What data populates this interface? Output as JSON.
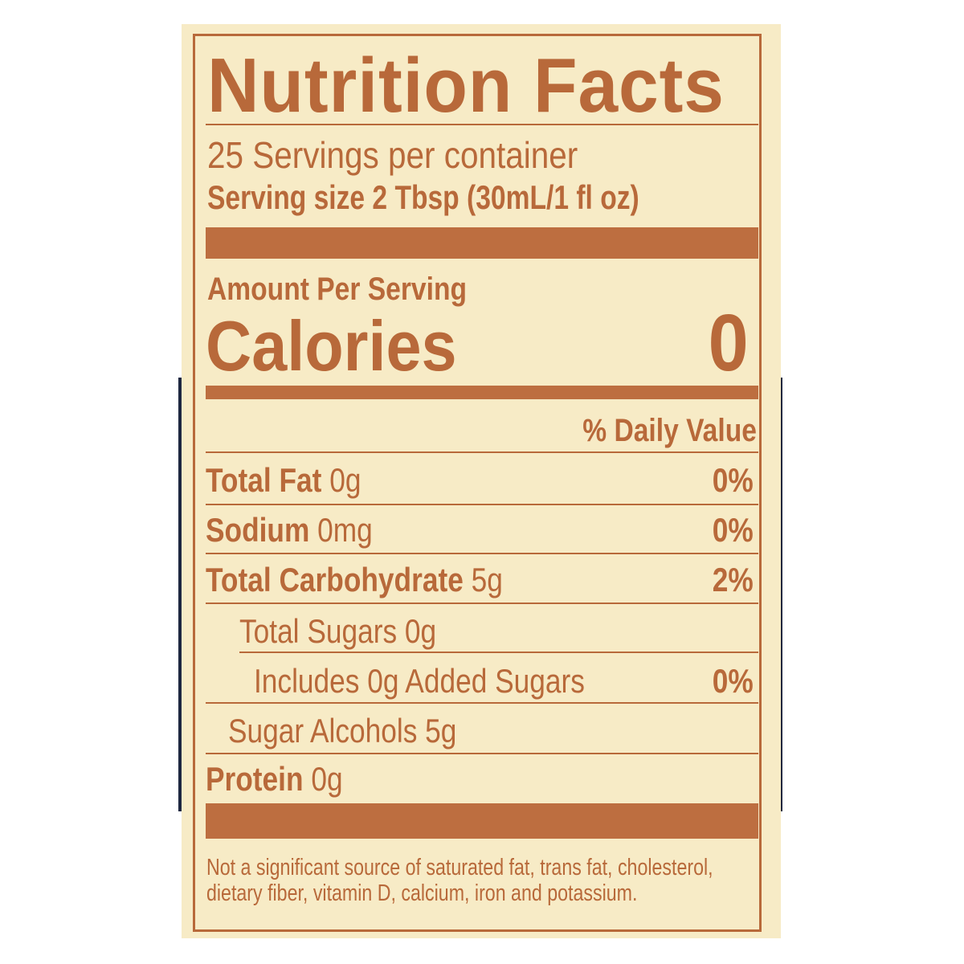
{
  "label": {
    "title": "Nutrition Facts",
    "servings_per_container": "25 Servings per container",
    "serving_size": "Serving size 2 Tbsp (30mL/1 fl oz)",
    "amount_per_serving": "Amount Per Serving",
    "calories_label": "Calories",
    "calories_value": "0",
    "daily_value_header": "% Daily Value",
    "nutrients": [
      {
        "name": "Total Fat",
        "amount": "0g",
        "dv": "0%"
      },
      {
        "name": "Sodium",
        "amount": "0mg",
        "dv": "0%"
      },
      {
        "name": "Total Carbohydrate",
        "amount": "5g",
        "dv": "2%"
      },
      {
        "name": "Total Sugars 0g",
        "amount": "",
        "dv": ""
      },
      {
        "name": "Includes 0g Added Sugars",
        "amount": "",
        "dv": "0%"
      },
      {
        "name": "Sugar Alcohols 5g",
        "amount": "",
        "dv": ""
      },
      {
        "name": "Protein",
        "amount": "0g",
        "dv": ""
      }
    ],
    "footnote_line1": "Not a significant source of saturated fat, trans fat, cholesterol,",
    "footnote_line2": "dietary fiber, vitamin D, calcium, iron and potassium."
  },
  "colors": {
    "ink": "#b8693a",
    "background": "#f7ebc6"
  }
}
